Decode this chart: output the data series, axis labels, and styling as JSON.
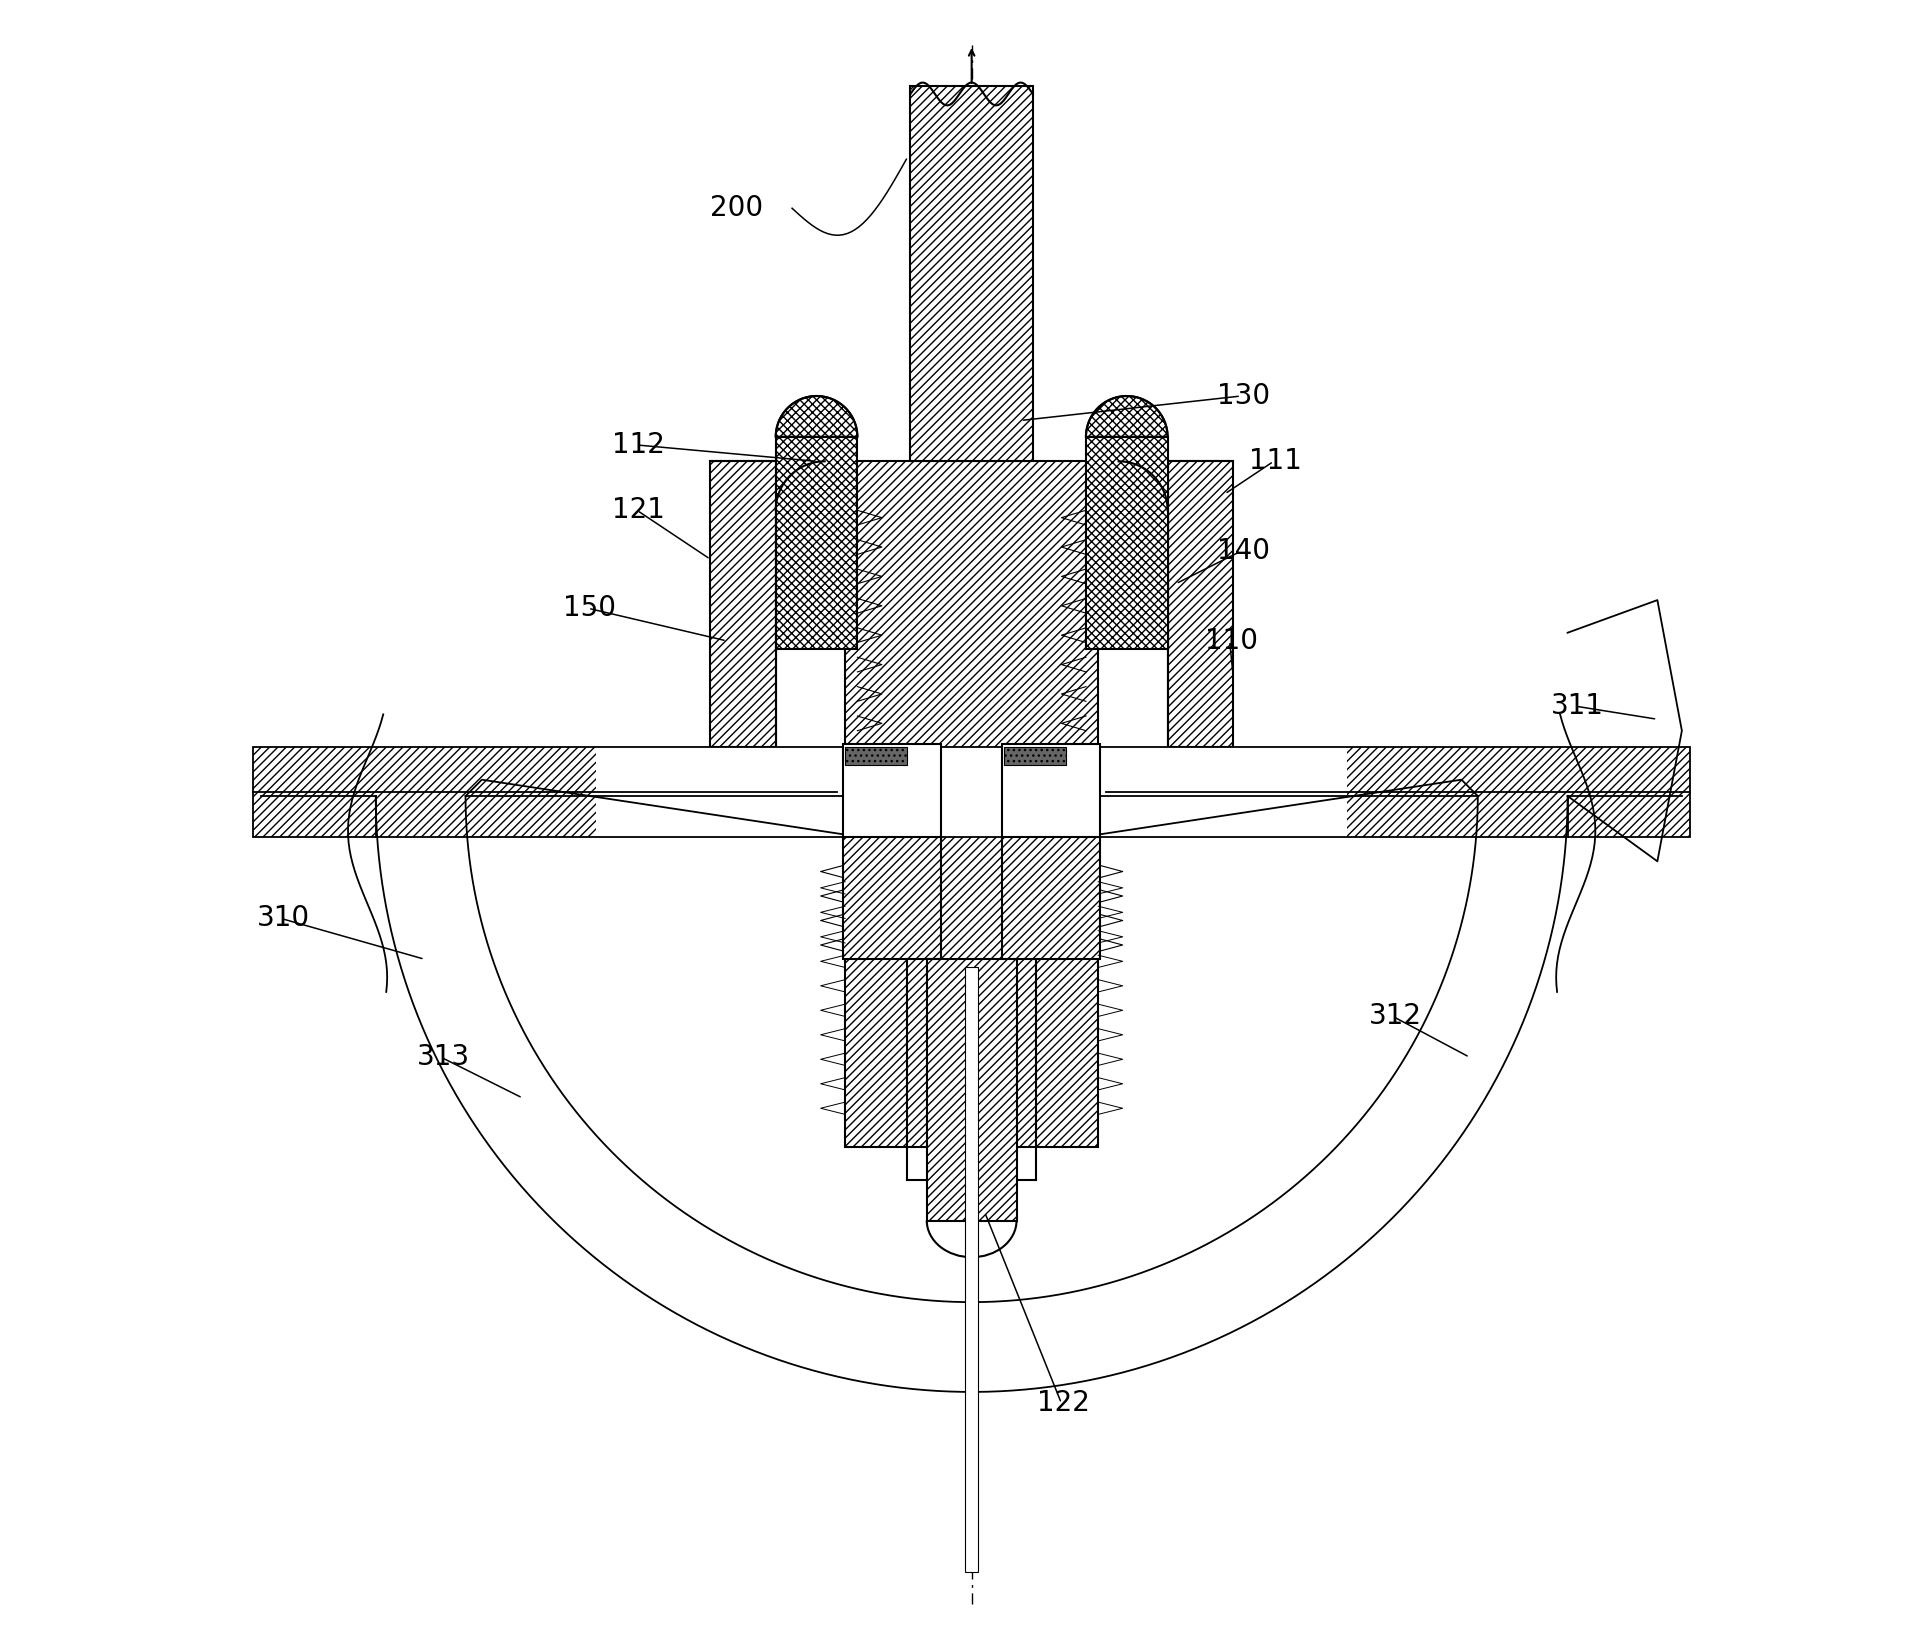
{
  "bg_color": "#ffffff",
  "line_color": "#000000",
  "fig_width": 19.27,
  "fig_height": 16.41,
  "dpi": 100
}
